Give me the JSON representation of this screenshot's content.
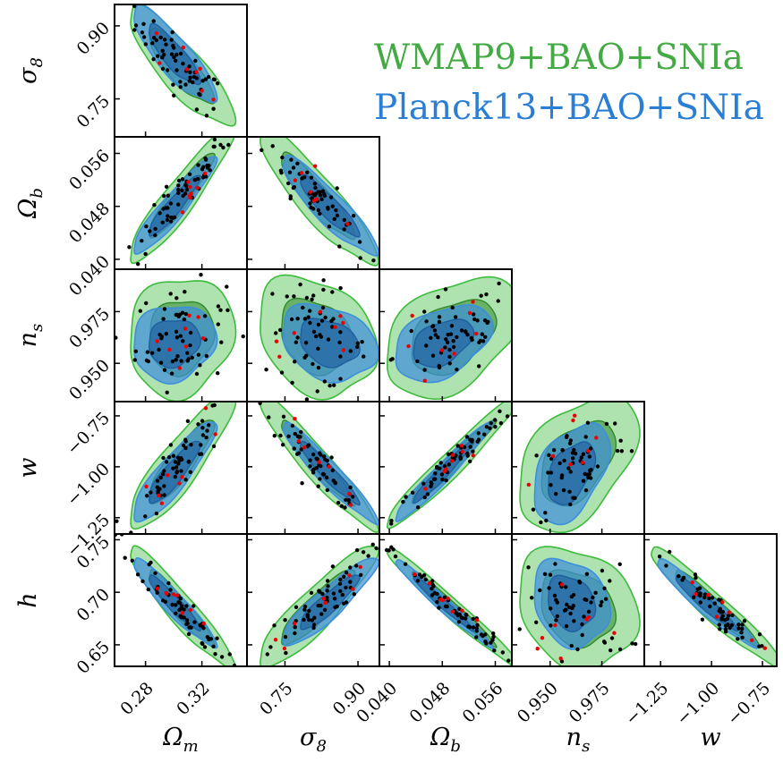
{
  "chart_data": {
    "type": "scatter",
    "layout": "corner",
    "parameters": [
      {
        "key": "Om",
        "axis_base": "Ω",
        "axis_sub": "m",
        "ticks": [
          0.28,
          0.32
        ],
        "tick_labels": [
          "0.28",
          "0.32"
        ],
        "range": [
          0.258,
          0.352
        ]
      },
      {
        "key": "s8",
        "axis_base": "σ",
        "axis_sub": "8",
        "ticks": [
          0.75,
          0.9
        ],
        "tick_labels": [
          "0.75",
          "0.90"
        ],
        "range": [
          0.672,
          0.944
        ]
      },
      {
        "key": "Ob",
        "axis_base": "Ω",
        "axis_sub": "b",
        "ticks": [
          0.04,
          0.048,
          0.056
        ],
        "tick_labels": [
          "0.040",
          "0.048",
          "0.056"
        ],
        "range": [
          0.0385,
          0.0585
        ]
      },
      {
        "key": "ns",
        "axis_base": "n",
        "axis_sub": "s",
        "ticks": [
          0.95,
          0.975
        ],
        "tick_labels": [
          "0.950",
          "0.975"
        ],
        "range": [
          0.9315,
          0.9955
        ]
      },
      {
        "key": "w",
        "axis_base": "w",
        "axis_sub": "",
        "ticks": [
          -1.25,
          -1.0,
          -0.75
        ],
        "tick_labels": [
          "−1.25",
          "−1.00",
          "−0.75"
        ],
        "range": [
          -1.33,
          -0.68
        ]
      },
      {
        "key": "h",
        "axis_base": "h",
        "axis_sub": "",
        "ticks": [
          0.65,
          0.7,
          0.75
        ],
        "tick_labels": [
          "0.65",
          "0.70",
          "0.75"
        ],
        "range": [
          0.6295,
          0.7555
        ]
      }
    ],
    "series": [
      {
        "name": "WMAP9+BAO+SNIa",
        "mean": [
          0.305,
          0.815,
          0.0495,
          0.963,
          -0.98,
          0.685
        ],
        "sigma": [
          0.0152,
          0.0495,
          0.0042,
          0.0118,
          0.135,
          0.0236
        ],
        "contour_color": "#3dbb3d",
        "inner_color": "#2f8a2f",
        "contour_alpha_outer": 0.42,
        "contour_alpha_inner": 0.55
      },
      {
        "name": "Planck13+BAO+SNIa",
        "mean": [
          0.3,
          0.84,
          0.048,
          0.96,
          -1.03,
          0.69
        ],
        "sigma": [
          0.012,
          0.04,
          0.003,
          0.0075,
          0.1,
          0.017
        ],
        "contour_color": "#3d8fdc",
        "inner_color": "#1f5fa0",
        "contour_alpha_outer": 0.7,
        "contour_alpha_inner": 0.65
      }
    ],
    "correlations": {
      "Om-s8": -0.85,
      "Om-Ob": 0.93,
      "Om-ns": 0.1,
      "Om-w": 0.88,
      "Om-h": -0.94,
      "s8-Ob": -0.9,
      "s8-ns": -0.25,
      "s8-w": -0.95,
      "s8-h": 0.9,
      "Ob-ns": 0.4,
      "Ob-w": 0.97,
      "Ob-h": -0.98,
      "ns-w": 0.45,
      "ns-h": -0.2,
      "w-h": -0.96
    },
    "sample_points": {
      "black_count": 60,
      "red_count": 8,
      "black_color": "#000000",
      "red_color": "#ee0000"
    },
    "grid": false,
    "legend_position": "top-right"
  }
}
